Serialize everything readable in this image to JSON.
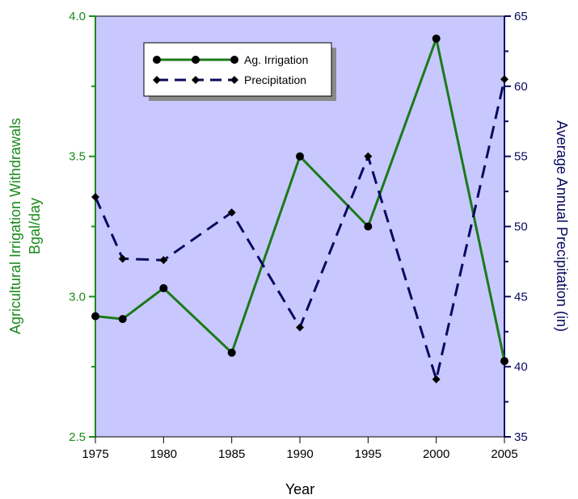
{
  "chart_data": {
    "type": "line",
    "title": "",
    "xlabel": "Year",
    "ylabel_left_line1": "Agricultural Irrigation Withdrawals",
    "ylabel_left_line2": "Bgal/day",
    "ylabel_right": "Average Annual Precipitation (in)",
    "xlim": [
      1975,
      2005
    ],
    "ylim_left": [
      2.5,
      4.0
    ],
    "ylim_right": [
      35,
      65
    ],
    "x_ticks": [
      "1975",
      "1980",
      "1985",
      "1990",
      "1995",
      "2000",
      "2005"
    ],
    "left_ticks": [
      "2.5",
      "3.0",
      "3.5",
      "4.0"
    ],
    "right_ticks": [
      "35",
      "40",
      "45",
      "50",
      "55",
      "60",
      "65"
    ],
    "grid": false,
    "legend_position": "top-left",
    "colors": {
      "plot_background": "#c8c8ff",
      "left_axis": "#1a8a1a",
      "right_axis": "#0a0a60",
      "series_irrigation": "#1a7a1a",
      "series_precip": "#0a0a60"
    },
    "series": [
      {
        "name": "Ag. Irrigation",
        "axis": "left",
        "style": "solid",
        "marker": "circle",
        "x": [
          1975,
          1977,
          1980,
          1985,
          1990,
          1995,
          2000,
          2005
        ],
        "values": [
          2.93,
          2.92,
          3.03,
          2.8,
          3.5,
          3.25,
          3.92,
          2.77
        ]
      },
      {
        "name": "Precipitation",
        "axis": "right",
        "style": "dashed",
        "marker": "diamond",
        "x": [
          1975,
          1977,
          1980,
          1985,
          1990,
          1995,
          2000,
          2005
        ],
        "values": [
          52.1,
          47.7,
          47.6,
          51.0,
          42.8,
          55.0,
          39.1,
          60.5
        ]
      }
    ]
  }
}
